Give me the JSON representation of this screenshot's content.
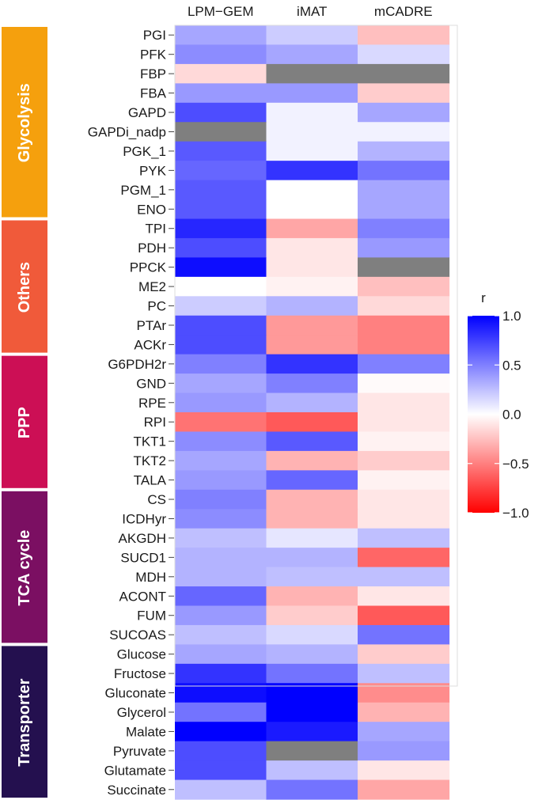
{
  "chart_data": {
    "type": "heatmap",
    "columns": [
      "LPM−GEM",
      "iMAT",
      "mCADRE"
    ],
    "rows": [
      "PGI",
      "PFK",
      "FBP",
      "FBA",
      "GAPD",
      "GAPDi_nadp",
      "PGK_1",
      "PYK",
      "PGM_1",
      "ENO",
      "TPI",
      "PDH",
      "PPCK",
      "ME2",
      "PC",
      "PTAr",
      "ACKr",
      "G6PDH2r",
      "GND",
      "RPE",
      "RPI",
      "TKT1",
      "TKT2",
      "TALA",
      "CS",
      "ICDHyr",
      "AKGDH",
      "SUCD1",
      "MDH",
      "ACONT",
      "FUM",
      "SUCOAS",
      "Glucose",
      "Fructose",
      "Gluconate",
      "Glycerol",
      "Malate",
      "Pyruvate",
      "Glutamate",
      "Succinate"
    ],
    "values": [
      [
        0.35,
        0.2,
        -0.25
      ],
      [
        0.45,
        0.35,
        0.15
      ],
      [
        -0.15,
        null,
        null
      ],
      [
        0.4,
        0.4,
        -0.2
      ],
      [
        0.7,
        0.05,
        0.35
      ],
      [
        null,
        0.05,
        0.05
      ],
      [
        0.65,
        0.05,
        0.3
      ],
      [
        0.6,
        0.8,
        0.55
      ],
      [
        0.65,
        0.0,
        0.35
      ],
      [
        0.65,
        0.0,
        0.35
      ],
      [
        0.85,
        -0.35,
        0.5
      ],
      [
        0.7,
        -0.1,
        0.4
      ],
      [
        0.95,
        -0.1,
        null
      ],
      [
        0.0,
        -0.05,
        -0.25
      ],
      [
        0.2,
        0.3,
        -0.15
      ],
      [
        0.7,
        -0.4,
        -0.5
      ],
      [
        0.7,
        -0.4,
        -0.5
      ],
      [
        0.5,
        0.8,
        0.5
      ],
      [
        0.35,
        0.5,
        -0.02
      ],
      [
        0.4,
        0.3,
        -0.1
      ],
      [
        -0.55,
        -0.65,
        -0.1
      ],
      [
        0.45,
        0.65,
        -0.05
      ],
      [
        0.35,
        -0.3,
        -0.2
      ],
      [
        0.4,
        0.6,
        -0.05
      ],
      [
        0.5,
        -0.3,
        -0.1
      ],
      [
        0.45,
        -0.3,
        -0.1
      ],
      [
        0.25,
        0.1,
        0.25
      ],
      [
        0.3,
        0.3,
        -0.6
      ],
      [
        0.3,
        0.25,
        0.25
      ],
      [
        0.6,
        -0.3,
        -0.1
      ],
      [
        0.4,
        -0.2,
        -0.65
      ],
      [
        0.25,
        0.15,
        0.55
      ],
      [
        0.35,
        0.3,
        -0.2
      ],
      [
        0.8,
        0.55,
        0.25
      ],
      [
        0.95,
        1.0,
        -0.45
      ],
      [
        0.55,
        1.0,
        -0.3
      ],
      [
        1.0,
        0.9,
        0.35
      ],
      [
        0.7,
        null,
        0.4
      ],
      [
        0.7,
        0.25,
        -0.1
      ],
      [
        0.25,
        0.55,
        -0.35
      ]
    ],
    "groups": [
      {
        "name": "Glycolysis",
        "start": 0,
        "end": 9,
        "color": "#f5a00d"
      },
      {
        "name": "Others",
        "start": 10,
        "end": 16,
        "color": "#f05a3a"
      },
      {
        "name": "PPP",
        "start": 17,
        "end": 23,
        "color": "#cc0f55"
      },
      {
        "name": "TCA cycle",
        "start": 24,
        "end": 31,
        "color": "#7b0f62"
      },
      {
        "name": "Transporter",
        "start": 32,
        "end": 39,
        "color": "#24104f"
      }
    ],
    "legend": {
      "title": "r",
      "range": [
        -1,
        1
      ],
      "ticks": [
        "1.0",
        "0.5",
        "0.0",
        "−0.5",
        "−1.0"
      ],
      "tick_values": [
        1,
        0.5,
        0,
        -0.5,
        -1
      ],
      "colors": {
        "high": "#0000ff",
        "mid": "#ffffff",
        "low": "#ff0000",
        "na": "#7f7f7f"
      }
    }
  }
}
